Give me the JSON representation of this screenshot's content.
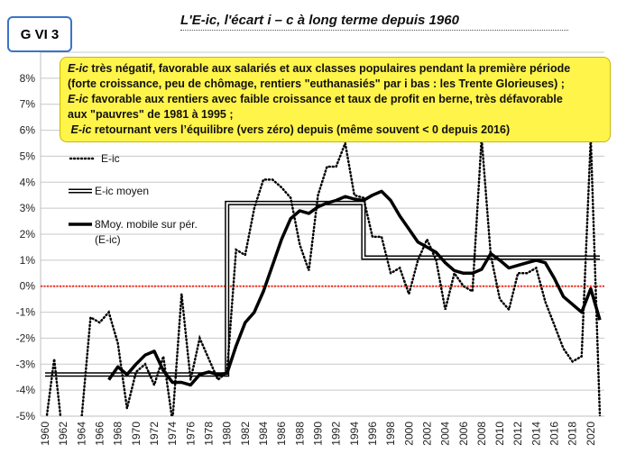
{
  "tag_label": "G VI 3",
  "title": "L'E-ic, l'écart  i – c à long terme depuis 1960",
  "note": {
    "line1_a": "E-ic",
    "line1_b": " très négatif, favorable aux salariés et aux classes populaires pendant la première période",
    "line2": "(forte croissance, peu de chômage, rentiers \"euthanasiés\" par i bas : les Trente Glorieuses) ;",
    "line3_a": "E-ic",
    "line3_b": " favorable aux rentiers avec faible croissance et taux de profit en berne, très défavorable",
    "line4": "aux \"pauvres\" de 1981 à 1995 ;",
    "line5_a": "E-ic",
    "line5_b": " retournant vers l’équilibre (vers zéro) depuis (même souvent < 0 depuis 2016)"
  },
  "chart_data": {
    "type": "line",
    "ylim": [
      -5,
      9
    ],
    "xlim": [
      1959.5,
      2021.5
    ],
    "y_ticks": [
      "-5%",
      "-4%",
      "-3%",
      "-2%",
      "-1%",
      "0%",
      "1%",
      "2%",
      "3%",
      "4%",
      "5%",
      "6%",
      "7%",
      "8%"
    ],
    "x_ticks": [
      "1960",
      "1962",
      "1964",
      "1966",
      "1968",
      "1970",
      "1972",
      "1974",
      "1976",
      "1978",
      "1980",
      "1982",
      "1984",
      "1986",
      "1988",
      "1990",
      "1992",
      "1994",
      "1996",
      "1998",
      "2000",
      "2002",
      "2004",
      "2006",
      "2008",
      "2010",
      "2012",
      "2014",
      "2016",
      "2018",
      "2020"
    ],
    "grid": true,
    "zero_line_color": "#ff2a1a",
    "legend": [
      "E-ic",
      "E-ic moyen",
      "8Moy. mobile sur pér.",
      "(E-ic)"
    ],
    "series": [
      {
        "name": "E-ic",
        "style": "dotted",
        "x": [
          1960,
          1961,
          1962,
          1963,
          1964,
          1965,
          1966,
          1967,
          1968,
          1969,
          1970,
          1971,
          1972,
          1973,
          1974,
          1975,
          1976,
          1977,
          1978,
          1979,
          1980,
          1981,
          1982,
          1983,
          1984,
          1985,
          1986,
          1987,
          1988,
          1989,
          1990,
          1991,
          1992,
          1993,
          1994,
          1995,
          1996,
          1997,
          1998,
          1999,
          2000,
          2001,
          2002,
          2003,
          2004,
          2005,
          2006,
          2007,
          2008,
          2009,
          2010,
          2011,
          2012,
          2013,
          2014,
          2015,
          2016,
          2017,
          2018,
          2019,
          2020,
          2021
        ],
        "y": [
          -5.5,
          -2.8,
          -6,
          -5.5,
          -5.1,
          -1.2,
          -1.4,
          -1,
          -2.2,
          -4.7,
          -3.3,
          -3,
          -3.8,
          -2.7,
          -5.2,
          -0.3,
          -3.6,
          -2,
          -2.8,
          -3.6,
          -3.3,
          1.4,
          1.2,
          3,
          4.1,
          4.1,
          3.8,
          3.4,
          1.6,
          0.6,
          3.5,
          4.6,
          4.6,
          5.5,
          3.5,
          3.4,
          1.9,
          1.9,
          0.5,
          0.7,
          -0.3,
          1,
          1.8,
          1,
          -0.9,
          0.5,
          0,
          -0.2,
          5.7,
          1.2,
          -0.5,
          -0.9,
          0.5,
          0.5,
          0.7,
          -0.6,
          -1.5,
          -2.4,
          -2.9,
          -2.7,
          5.7,
          -5
        ]
      },
      {
        "name": "E-ic moyen",
        "style": "double",
        "x": [
          1960,
          1980,
          1980,
          1995,
          1995,
          2021
        ],
        "y": [
          -3.4,
          -3.4,
          3.2,
          3.2,
          1.1,
          1.1
        ]
      },
      {
        "name": "8Moy. mobile sur pér. (E-ic)",
        "style": "thick",
        "x": [
          1967,
          1968,
          1969,
          1970,
          1971,
          1972,
          1973,
          1974,
          1975,
          1976,
          1977,
          1978,
          1979,
          1980,
          1981,
          1982,
          1983,
          1984,
          1985,
          1986,
          1987,
          1988,
          1989,
          1990,
          1991,
          1992,
          1993,
          1994,
          1995,
          1996,
          1997,
          1998,
          1999,
          2000,
          2001,
          2002,
          2003,
          2004,
          2005,
          2006,
          2007,
          2008,
          2009,
          2010,
          2011,
          2012,
          2013,
          2014,
          2015,
          2016,
          2017,
          2018,
          2019,
          2020,
          2021
        ],
        "y": [
          -3.6,
          -3.1,
          -3.4,
          -3,
          -2.65,
          -2.5,
          -3.25,
          -3.7,
          -3.7,
          -3.8,
          -3.4,
          -3.3,
          -3.4,
          -3.35,
          -2.3,
          -1.4,
          -1,
          -0.2,
          0.8,
          1.8,
          2.6,
          2.9,
          2.8,
          3.05,
          3.2,
          3.3,
          3.45,
          3.35,
          3.3,
          3.5,
          3.65,
          3.3,
          2.7,
          2.2,
          1.7,
          1.5,
          1.3,
          0.9,
          0.6,
          0.5,
          0.5,
          0.65,
          1.25,
          1,
          0.7,
          0.8,
          0.9,
          1,
          0.9,
          0.3,
          -0.4,
          -0.7,
          -1,
          -0.1,
          -1.3
        ]
      }
    ]
  },
  "colors": {
    "axis": "#bfbfbf",
    "grid": "#c8c8c8",
    "zero": "#ff2a1a",
    "series": "#000000",
    "note_bg": "#fff44a",
    "tag_border": "#3a74c9"
  }
}
